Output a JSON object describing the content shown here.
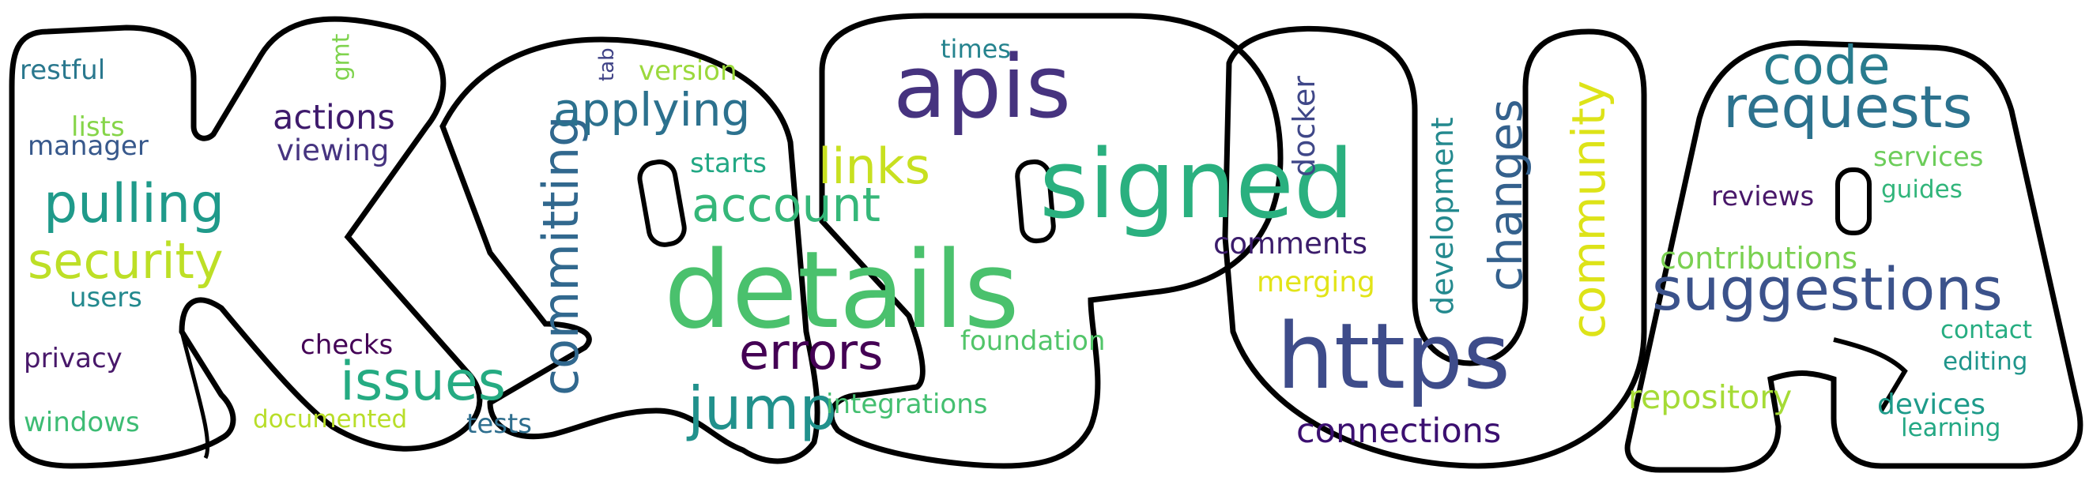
{
  "shape_letters": "KAPUA",
  "words": [
    {
      "text": "details",
      "color": "#4ac16d"
    },
    {
      "text": "signed",
      "color": "#2ab07f"
    },
    {
      "text": "https",
      "color": "#3e4c8a"
    },
    {
      "text": "apis",
      "color": "#46337f"
    },
    {
      "text": "suggestions",
      "color": "#3b528b"
    },
    {
      "text": "requests",
      "color": "#2c728e"
    },
    {
      "text": "issues",
      "color": "#25ab82"
    },
    {
      "text": "jump",
      "color": "#21918c"
    },
    {
      "text": "code",
      "color": "#287c8e"
    },
    {
      "text": "pulling",
      "color": "#1f9a8a"
    },
    {
      "text": "errors",
      "color": "#440154"
    },
    {
      "text": "committing",
      "color": "#31688e"
    },
    {
      "text": "account",
      "color": "#35b779"
    },
    {
      "text": "changes",
      "color": "#34618d"
    },
    {
      "text": "community",
      "color": "#dde318"
    },
    {
      "text": "security",
      "color": "#bddf26"
    },
    {
      "text": "applying",
      "color": "#2c718e"
    },
    {
      "text": "links",
      "color": "#c8e020"
    },
    {
      "text": "connections",
      "color": "#3b0f70"
    },
    {
      "text": "development",
      "color": "#23898e"
    },
    {
      "text": "actions",
      "color": "#3e1a6c"
    },
    {
      "text": "repository",
      "color": "#a5db36"
    },
    {
      "text": "contributions",
      "color": "#7ad151"
    },
    {
      "text": "docker",
      "color": "#3f4788"
    },
    {
      "text": "foundation",
      "color": "#52c569"
    },
    {
      "text": "integrations",
      "color": "#44bf70"
    },
    {
      "text": "comments",
      "color": "#3b1c6b"
    },
    {
      "text": "merging",
      "color": "#e2e418"
    },
    {
      "text": "devices",
      "color": "#1e9b8a"
    },
    {
      "text": "services",
      "color": "#6ccd5a"
    },
    {
      "text": "reviews",
      "color": "#481769"
    },
    {
      "text": "restful",
      "color": "#2a788e"
    },
    {
      "text": "manager",
      "color": "#38598c"
    },
    {
      "text": "lists",
      "color": "#86d549"
    },
    {
      "text": "viewing",
      "color": "#463480"
    },
    {
      "text": "users",
      "color": "#23898e"
    },
    {
      "text": "privacy",
      "color": "#48186a"
    },
    {
      "text": "windows",
      "color": "#3dbc74"
    },
    {
      "text": "checks",
      "color": "#440256"
    },
    {
      "text": "documented",
      "color": "#b8de29"
    },
    {
      "text": "tests",
      "color": "#2e6e8e"
    },
    {
      "text": "starts",
      "color": "#22a884"
    },
    {
      "text": "version",
      "color": "#9bd93c"
    },
    {
      "text": "times",
      "color": "#25838e"
    },
    {
      "text": "gmt",
      "color": "#7fd34e"
    },
    {
      "text": "tab",
      "color": "#404387"
    },
    {
      "text": "guides",
      "color": "#31b57b"
    },
    {
      "text": "contact",
      "color": "#26ad81"
    },
    {
      "text": "editing",
      "color": "#1f958b"
    },
    {
      "text": "learning",
      "color": "#24a884"
    }
  ]
}
